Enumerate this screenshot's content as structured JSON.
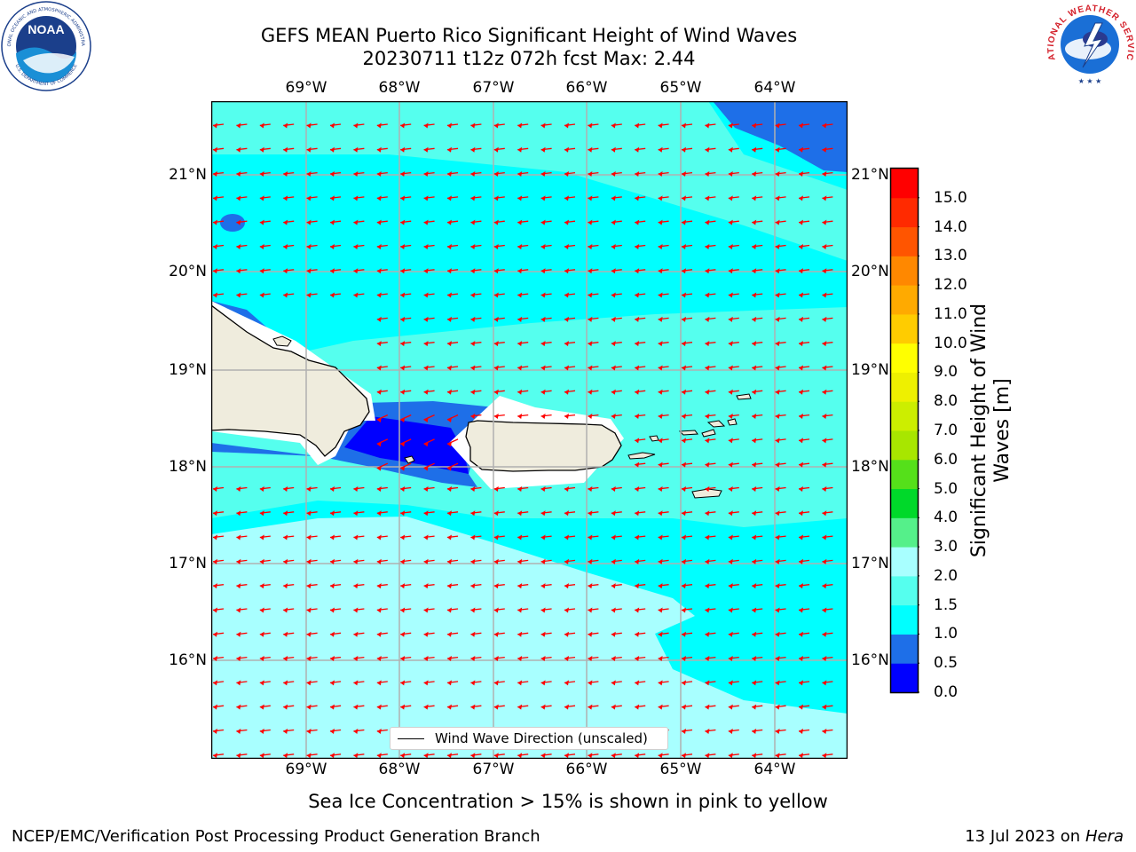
{
  "title": {
    "line1": "GEFS MEAN Puerto Rico Significant Height of Wind Waves",
    "line2": "20230711 t12z 072h fcst   Max: 2.44"
  },
  "map": {
    "lon_ticks": [
      "69°W",
      "68°W",
      "67°W",
      "66°W",
      "65°W",
      "64°W"
    ],
    "lat_ticks_left": [
      "21°N",
      "20°N",
      "19°N",
      "18°N",
      "17°N",
      "16°N"
    ],
    "lat_ticks_right": [
      "21°N",
      "20°N",
      "19°N",
      "18°N",
      "17°N",
      "16°N"
    ],
    "legend_label": "Wind Wave Direction (unscaled)",
    "ocean_color": "#00ffff",
    "arrow_color": "#ff0000"
  },
  "colorbar": {
    "label_line1": "Significant Height of Wind",
    "label_line2": "Waves [m]",
    "ticks": [
      "0.0",
      "0.5",
      "1.0",
      "1.5",
      "2.0",
      "3.0",
      "4.0",
      "5.0",
      "6.0",
      "7.0",
      "8.0",
      "9.0",
      "10.0",
      "11.0",
      "12.0",
      "13.0",
      "14.0",
      "15.0"
    ],
    "colors": [
      "#0000ff",
      "#1e6fe8",
      "#00ffff",
      "#55ffee",
      "#a8ffff",
      "#55f08a",
      "#00d92a",
      "#55e01a",
      "#a8e600",
      "#ccee00",
      "#eef000",
      "#ffff00",
      "#ffcc00",
      "#ffaa00",
      "#ff8800",
      "#ff5500",
      "#ff2a00",
      "#ff0000"
    ]
  },
  "caption": "Sea Ice Concentration > 15% is shown in pink to yellow",
  "footer": {
    "left": "NCEP/EMC/Verification Post Processing Product Generation Branch",
    "right_prefix": "13 Jul 2023 on ",
    "right_host": "Hera"
  },
  "logos": {
    "noaa_text": "NOAA",
    "noaa_ring": "NATIONAL OCEANIC AND ATMOSPHERIC ADMINISTRATION",
    "noaa_ring_bottom": "U.S. DEPARTMENT OF COMMERCE",
    "nws_ring": "NATIONAL WEATHER SERVICE"
  }
}
